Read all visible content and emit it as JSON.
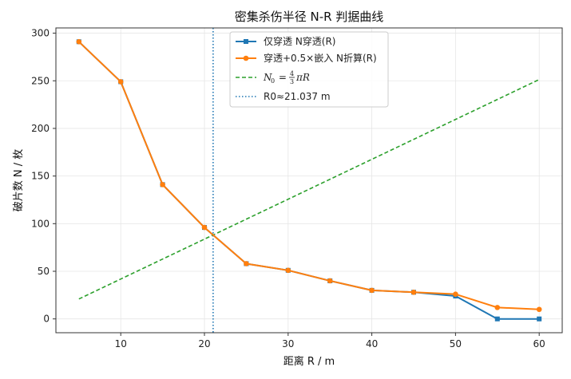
{
  "chart_data": {
    "type": "line",
    "title": "密集杀伤半径 N-R 判据曲线",
    "xlabel": "距离 R / m",
    "ylabel": "破片数 N / 枚",
    "xlim": [
      2.25,
      62.75
    ],
    "ylim": [
      -14.5,
      305.5
    ],
    "xticks": [
      10,
      20,
      30,
      40,
      50,
      60
    ],
    "yticks": [
      0,
      50,
      100,
      150,
      200,
      250,
      300
    ],
    "grid": true,
    "legend_position": "top-center",
    "x": [
      5,
      10,
      15,
      20,
      25,
      30,
      35,
      40,
      45,
      50,
      55,
      60
    ],
    "series": [
      {
        "name": "仅穿透 N穿透(R)",
        "color": "#1f77b4",
        "marker": "square",
        "values": [
          291,
          249,
          141,
          96,
          58,
          51,
          40,
          30,
          28,
          24,
          0,
          0
        ]
      },
      {
        "name": "穿透+0.5×嵌入 N折算(R)",
        "color": "#ff7f0e",
        "marker": "circle",
        "values": [
          291,
          249,
          141,
          96,
          58,
          51,
          40,
          30,
          28,
          26,
          12,
          10
        ]
      },
      {
        "name_parts": [
          "N",
          "0",
          " = ",
          "4",
          "3",
          "πR"
        ],
        "color": "#2ca02c",
        "style": "dashed",
        "x": [
          5,
          60
        ],
        "values": [
          20.94,
          251.33
        ]
      }
    ],
    "vline": {
      "label": "R0≈21.037 m",
      "x": 21.037,
      "color": "#1f77b4",
      "style": "dotted"
    }
  }
}
